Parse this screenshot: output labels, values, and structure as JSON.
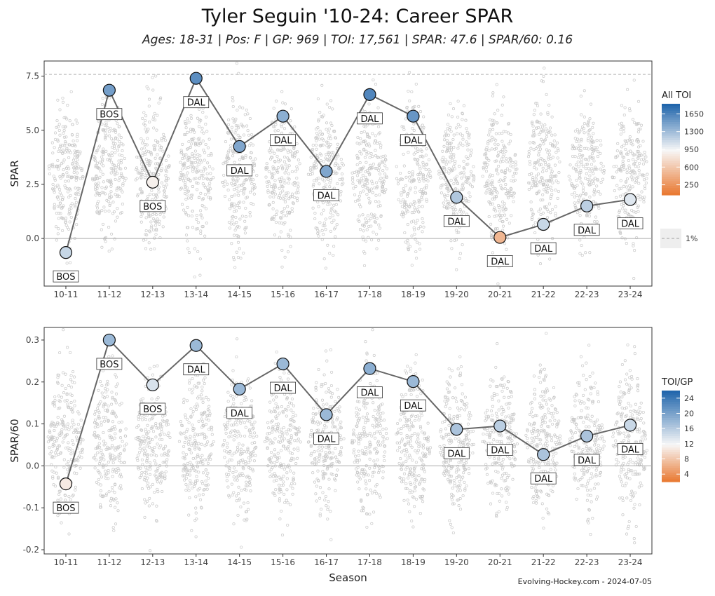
{
  "title": "Tyler Seguin '10-24: Career SPAR",
  "subtitle": "Ages: 18-31 | Pos: F | GP: 969 | TOI: 17,561 | SPAR: 47.6 | SPAR/60: 0.16",
  "source": "Evolving-Hockey.com - 2024-07-05",
  "xlabel": "Season",
  "colors": {
    "line": "#666666",
    "zero": "#aaaaaa",
    "ref": "#b0b0b0",
    "dot": "#c8c8c8",
    "high": "#2166ac",
    "low": "#e8742a"
  },
  "chart_data": [
    {
      "type": "line",
      "ylabel": "SPAR",
      "ylim": [
        -2.2,
        8.2
      ],
      "yticks": [
        0.0,
        2.5,
        5.0,
        7.5
      ],
      "ytick_labels": [
        "0.0",
        "2.5",
        "5.0",
        "7.5"
      ],
      "reference_line": {
        "y": 7.58,
        "label": "1%",
        "style": "dashed"
      },
      "categories": [
        "10-11",
        "11-12",
        "12-13",
        "13-14",
        "14-15",
        "15-16",
        "16-17",
        "17-18",
        "18-19",
        "19-20",
        "20-21",
        "21-22",
        "22-23",
        "23-24"
      ],
      "values": [
        -0.65,
        6.85,
        2.6,
        7.4,
        4.25,
        5.65,
        3.1,
        6.65,
        5.65,
        1.9,
        0.05,
        0.65,
        1.5,
        1.8
      ],
      "teams": [
        "BOS",
        "BOS",
        "BOS",
        "DAL",
        "DAL",
        "DAL",
        "DAL",
        "DAL",
        "DAL",
        "DAL",
        "DAL",
        "DAL",
        "DAL",
        "DAL"
      ],
      "label_below": [
        true,
        true,
        true,
        true,
        true,
        true,
        true,
        true,
        true,
        true,
        true,
        true,
        true,
        true
      ],
      "color_values": [
        1150,
        1500,
        900,
        1600,
        1450,
        1400,
        1450,
        1650,
        1550,
        1250,
        500,
        1150,
        1200,
        1050
      ],
      "legend": {
        "title": "All TOI",
        "ticks": [
          1650,
          1300,
          950,
          600,
          250
        ],
        "range": [
          50,
          1850
        ],
        "position": "right"
      }
    },
    {
      "type": "line",
      "ylabel": "SPAR/60",
      "ylim": [
        -0.21,
        0.33
      ],
      "yticks": [
        -0.2,
        -0.1,
        0.0,
        0.1,
        0.2,
        0.3
      ],
      "ytick_labels": [
        "-0.2",
        "-0.1",
        "0.0",
        "0.1",
        "0.2",
        "0.3"
      ],
      "categories": [
        "10-11",
        "11-12",
        "12-13",
        "13-14",
        "14-15",
        "15-16",
        "16-17",
        "17-18",
        "18-19",
        "19-20",
        "20-21",
        "21-22",
        "22-23",
        "23-24"
      ],
      "values": [
        -0.043,
        0.3,
        0.193,
        0.287,
        0.183,
        0.243,
        0.122,
        0.232,
        0.201,
        0.087,
        0.095,
        0.027,
        0.071,
        0.097
      ],
      "teams": [
        "BOS",
        "BOS",
        "BOS",
        "DAL",
        "DAL",
        "DAL",
        "DAL",
        "DAL",
        "DAL",
        "DAL",
        "DAL",
        "DAL",
        "DAL",
        "DAL"
      ],
      "color_values": [
        11,
        18,
        14,
        18,
        18,
        18,
        18,
        19,
        18,
        17,
        16,
        17,
        17,
        15
      ],
      "legend": {
        "title": "TOI/GP",
        "ticks": [
          24,
          20,
          16,
          12,
          8,
          4
        ],
        "range": [
          2,
          26
        ],
        "position": "right"
      }
    }
  ]
}
